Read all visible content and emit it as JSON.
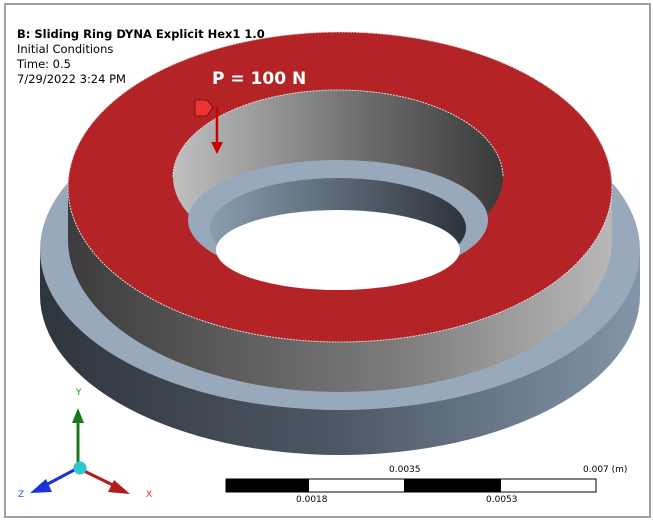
{
  "header": {
    "title": "B: Sliding Ring DYNA Explicit Hex1 1.0",
    "subtitle": "Initial Conditions",
    "time": "Time: 0.5",
    "timestamp": "7/29/2022 3:24 PM"
  },
  "load_label": "P = 100 N",
  "triad": {
    "x": "X",
    "y": "Y",
    "z": "Z"
  },
  "scale_bar": {
    "top_labels": [
      "0.0035",
      "0.007 (m)"
    ],
    "bottom_labels": [
      "0.0018",
      "0.0053"
    ]
  },
  "colors": {
    "load_face": "#b42326",
    "triad_x": "#c0191b",
    "triad_y": "#1a7a1a",
    "triad_z": "#1a33d6"
  }
}
